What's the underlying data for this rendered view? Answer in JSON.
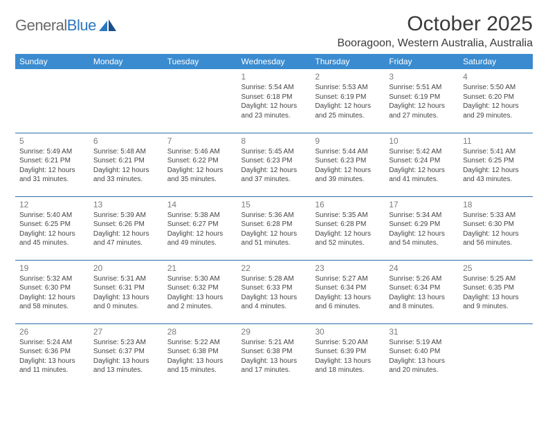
{
  "logo": {
    "word1": "General",
    "word2": "Blue"
  },
  "title": "October 2025",
  "location": "Booragoon, Western Australia, Australia",
  "colors": {
    "header_bg": "#3a8bd0",
    "header_text": "#ffffff",
    "row_border": "#2b6aa8",
    "daynum": "#7a7a7a",
    "body_text": "#444444",
    "logo_gray": "#6a6a6a",
    "logo_blue": "#2b77c0"
  },
  "day_headers": [
    "Sunday",
    "Monday",
    "Tuesday",
    "Wednesday",
    "Thursday",
    "Friday",
    "Saturday"
  ],
  "weeks": [
    [
      null,
      null,
      null,
      {
        "n": "1",
        "sr": "5:54 AM",
        "ss": "6:18 PM",
        "dl": "12 hours and 23 minutes."
      },
      {
        "n": "2",
        "sr": "5:53 AM",
        "ss": "6:19 PM",
        "dl": "12 hours and 25 minutes."
      },
      {
        "n": "3",
        "sr": "5:51 AM",
        "ss": "6:19 PM",
        "dl": "12 hours and 27 minutes."
      },
      {
        "n": "4",
        "sr": "5:50 AM",
        "ss": "6:20 PM",
        "dl": "12 hours and 29 minutes."
      }
    ],
    [
      {
        "n": "5",
        "sr": "5:49 AM",
        "ss": "6:21 PM",
        "dl": "12 hours and 31 minutes."
      },
      {
        "n": "6",
        "sr": "5:48 AM",
        "ss": "6:21 PM",
        "dl": "12 hours and 33 minutes."
      },
      {
        "n": "7",
        "sr": "5:46 AM",
        "ss": "6:22 PM",
        "dl": "12 hours and 35 minutes."
      },
      {
        "n": "8",
        "sr": "5:45 AM",
        "ss": "6:23 PM",
        "dl": "12 hours and 37 minutes."
      },
      {
        "n": "9",
        "sr": "5:44 AM",
        "ss": "6:23 PM",
        "dl": "12 hours and 39 minutes."
      },
      {
        "n": "10",
        "sr": "5:42 AM",
        "ss": "6:24 PM",
        "dl": "12 hours and 41 minutes."
      },
      {
        "n": "11",
        "sr": "5:41 AM",
        "ss": "6:25 PM",
        "dl": "12 hours and 43 minutes."
      }
    ],
    [
      {
        "n": "12",
        "sr": "5:40 AM",
        "ss": "6:25 PM",
        "dl": "12 hours and 45 minutes."
      },
      {
        "n": "13",
        "sr": "5:39 AM",
        "ss": "6:26 PM",
        "dl": "12 hours and 47 minutes."
      },
      {
        "n": "14",
        "sr": "5:38 AM",
        "ss": "6:27 PM",
        "dl": "12 hours and 49 minutes."
      },
      {
        "n": "15",
        "sr": "5:36 AM",
        "ss": "6:28 PM",
        "dl": "12 hours and 51 minutes."
      },
      {
        "n": "16",
        "sr": "5:35 AM",
        "ss": "6:28 PM",
        "dl": "12 hours and 52 minutes."
      },
      {
        "n": "17",
        "sr": "5:34 AM",
        "ss": "6:29 PM",
        "dl": "12 hours and 54 minutes."
      },
      {
        "n": "18",
        "sr": "5:33 AM",
        "ss": "6:30 PM",
        "dl": "12 hours and 56 minutes."
      }
    ],
    [
      {
        "n": "19",
        "sr": "5:32 AM",
        "ss": "6:30 PM",
        "dl": "12 hours and 58 minutes."
      },
      {
        "n": "20",
        "sr": "5:31 AM",
        "ss": "6:31 PM",
        "dl": "13 hours and 0 minutes."
      },
      {
        "n": "21",
        "sr": "5:30 AM",
        "ss": "6:32 PM",
        "dl": "13 hours and 2 minutes."
      },
      {
        "n": "22",
        "sr": "5:28 AM",
        "ss": "6:33 PM",
        "dl": "13 hours and 4 minutes."
      },
      {
        "n": "23",
        "sr": "5:27 AM",
        "ss": "6:34 PM",
        "dl": "13 hours and 6 minutes."
      },
      {
        "n": "24",
        "sr": "5:26 AM",
        "ss": "6:34 PM",
        "dl": "13 hours and 8 minutes."
      },
      {
        "n": "25",
        "sr": "5:25 AM",
        "ss": "6:35 PM",
        "dl": "13 hours and 9 minutes."
      }
    ],
    [
      {
        "n": "26",
        "sr": "5:24 AM",
        "ss": "6:36 PM",
        "dl": "13 hours and 11 minutes."
      },
      {
        "n": "27",
        "sr": "5:23 AM",
        "ss": "6:37 PM",
        "dl": "13 hours and 13 minutes."
      },
      {
        "n": "28",
        "sr": "5:22 AM",
        "ss": "6:38 PM",
        "dl": "13 hours and 15 minutes."
      },
      {
        "n": "29",
        "sr": "5:21 AM",
        "ss": "6:38 PM",
        "dl": "13 hours and 17 minutes."
      },
      {
        "n": "30",
        "sr": "5:20 AM",
        "ss": "6:39 PM",
        "dl": "13 hours and 18 minutes."
      },
      {
        "n": "31",
        "sr": "5:19 AM",
        "ss": "6:40 PM",
        "dl": "13 hours and 20 minutes."
      },
      null
    ]
  ],
  "labels": {
    "sunrise": "Sunrise:",
    "sunset": "Sunset:",
    "daylight": "Daylight:"
  }
}
